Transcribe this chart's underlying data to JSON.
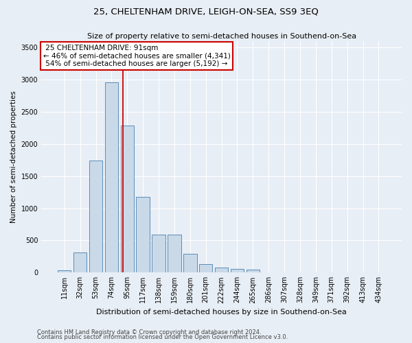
{
  "title": "25, CHELTENHAM DRIVE, LEIGH-ON-SEA, SS9 3EQ",
  "subtitle": "Size of property relative to semi-detached houses in Southend-on-Sea",
  "xlabel": "Distribution of semi-detached houses by size in Southend-on-Sea",
  "ylabel": "Number of semi-detached properties",
  "categories": [
    "11sqm",
    "32sqm",
    "53sqm",
    "74sqm",
    "95sqm",
    "117sqm",
    "138sqm",
    "159sqm",
    "180sqm",
    "201sqm",
    "222sqm",
    "244sqm",
    "265sqm",
    "286sqm",
    "307sqm",
    "328sqm",
    "349sqm",
    "371sqm",
    "392sqm",
    "413sqm",
    "434sqm"
  ],
  "values": [
    30,
    310,
    1740,
    2960,
    2280,
    1175,
    590,
    590,
    295,
    130,
    80,
    60,
    50,
    0,
    0,
    0,
    0,
    0,
    0,
    0,
    0
  ],
  "bar_color": "#c9d9e8",
  "bar_edge_color": "#5b8db8",
  "vline_color": "#cc0000",
  "vline_x": 3.72,
  "property_label": "25 CHELTENHAM DRIVE: 91sqm",
  "smaller_pct": 46,
  "smaller_count": "4,341",
  "larger_pct": 54,
  "larger_count": "5,192",
  "annotation_box_color": "#ffffff",
  "annotation_box_edge": "#cc0000",
  "ylim": [
    0,
    3600
  ],
  "yticks": [
    0,
    500,
    1000,
    1500,
    2000,
    2500,
    3000,
    3500
  ],
  "footer1": "Contains HM Land Registry data © Crown copyright and database right 2024.",
  "footer2": "Contains public sector information licensed under the Open Government Licence v3.0.",
  "bg_color": "#e8eef5",
  "plot_bg_color": "#e8eef5",
  "grid_color": "#ffffff",
  "title_fontsize": 9.5,
  "subtitle_fontsize": 8,
  "ylabel_fontsize": 7.5,
  "xlabel_fontsize": 8,
  "tick_fontsize": 7,
  "annotation_fontsize": 7.5,
  "footer_fontsize": 6
}
